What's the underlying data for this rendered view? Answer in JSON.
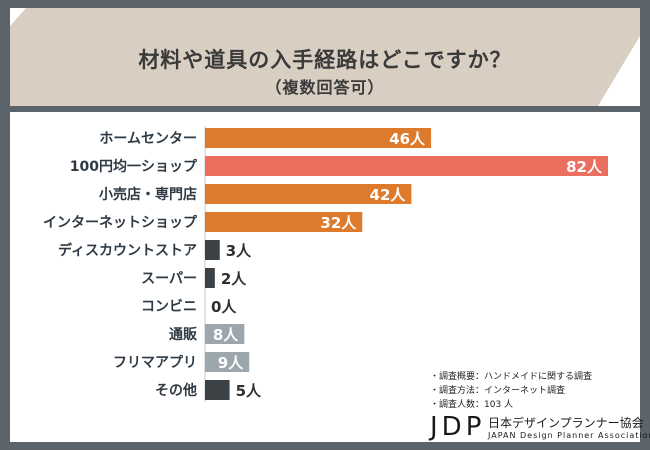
{
  "header": {
    "title": "材料や道具の入手経路はどこですか？",
    "subtitle": "（複数回答可）"
  },
  "survey": {
    "lines": [
      "・調査概要：ハンドメイドに関する調査",
      "・調査方法：インターネット調査",
      "・調査人数：103 人"
    ]
  },
  "logo": {
    "mark": "JDP",
    "name_jp": "日本デザインプランナー協会",
    "name_en": "JAPAN Design Planner Association"
  },
  "colors": {
    "orange": "#de7a2c",
    "highlight": "#eb6e5f",
    "dark": "#3c4146",
    "gray": "#9ba6ad"
  },
  "chart_data": {
    "type": "bar",
    "orientation": "horizontal",
    "unit": "人",
    "categories": [
      "ホームセンター",
      "100円均一ショップ",
      "小売店・専門店",
      "インターネットショップ",
      "ディスカウントストア",
      "スーパー",
      "コンビニ",
      "通販",
      "フリマアプリ",
      "その他"
    ],
    "values": [
      46,
      82,
      42,
      32,
      3,
      2,
      0,
      8,
      9,
      5
    ],
    "labels": [
      "46人",
      "82人",
      "42人",
      "32人",
      "3人",
      "2人",
      "0人",
      "8人",
      "9人",
      "5人"
    ],
    "bar_colors": [
      "orange",
      "highlight",
      "orange",
      "orange",
      "dark",
      "dark",
      "dark",
      "gray",
      "gray",
      "dark"
    ],
    "label_inside": [
      true,
      true,
      true,
      true,
      false,
      false,
      false,
      true,
      true,
      false
    ],
    "xlim": [
      0,
      82
    ]
  }
}
